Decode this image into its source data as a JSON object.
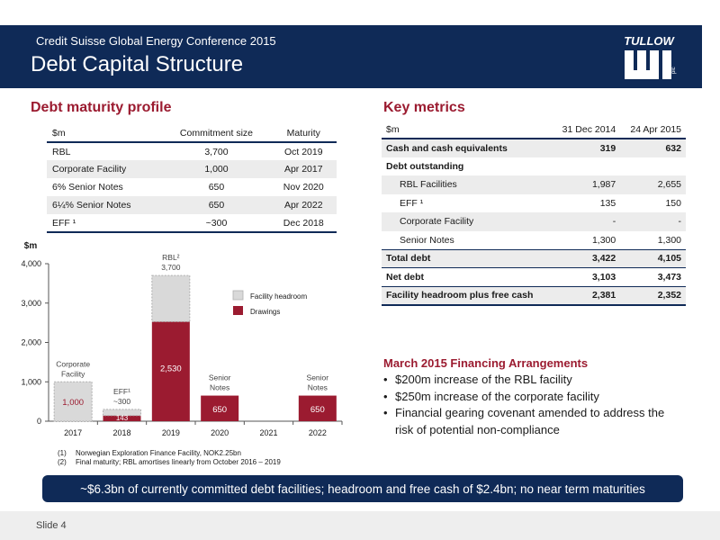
{
  "header": {
    "conference": "Credit Suisse Global Energy Conference 2015",
    "title": "Debt Capital Structure",
    "logo_text": "TULLOW",
    "logo_suffix": "plc"
  },
  "maturity": {
    "title": "Debt maturity profile",
    "columns": [
      "$m",
      "Commitment size",
      "Maturity"
    ],
    "rows": [
      {
        "name": "RBL",
        "size": "3,700",
        "maturity": "Oct 2019"
      },
      {
        "name": "Corporate Facility",
        "size": "1,000",
        "maturity": "Apr 2017"
      },
      {
        "name": "6% Senior Notes",
        "size": "650",
        "maturity": "Nov 2020"
      },
      {
        "name": "6¼% Senior Notes",
        "size": "650",
        "maturity": "Apr 2022"
      },
      {
        "name": "EFF ¹",
        "size": "~300",
        "maturity": "Dec 2018"
      }
    ]
  },
  "chart_data": {
    "type": "bar",
    "ylabel": "$m",
    "ylim": [
      0,
      4000
    ],
    "yticks": [
      "0",
      "1,000",
      "2,000",
      "3,000",
      "4,000"
    ],
    "categories": [
      "2017",
      "2018",
      "2019",
      "2020",
      "2021",
      "2022"
    ],
    "series": [
      {
        "name": "Drawings",
        "values": [
          0,
          143,
          2530,
          650,
          0,
          650
        ],
        "labels": [
          "",
          "143",
          "2,530",
          "650",
          "",
          "650"
        ]
      },
      {
        "name": "Facility headroom",
        "values": [
          1000,
          157,
          1170,
          0,
          0,
          0
        ],
        "labels": [
          "1,000",
          "",
          "",
          "",
          "",
          ""
        ]
      }
    ],
    "annotations": [
      {
        "category": "2017",
        "lines": [
          "Corporate",
          "Facility"
        ]
      },
      {
        "category": "2018",
        "lines": [
          "EFF¹",
          "~300"
        ]
      },
      {
        "category": "2019",
        "lines": [
          "RBL²",
          "3,700"
        ]
      },
      {
        "category": "2020",
        "lines": [
          "Senior",
          "Notes"
        ]
      },
      {
        "category": "2022",
        "lines": [
          "Senior",
          "Notes"
        ]
      }
    ],
    "legend_position": "top-right",
    "colors": {
      "drawings": "#9b1b30",
      "headroom": "#d9d9d9",
      "headroom_border": "#b0b0b0"
    }
  },
  "footnotes": [
    {
      "num": "(1)",
      "text": "Norwegian Exploration Finance Facility, NOK2.25bn"
    },
    {
      "num": "(2)",
      "text": "Final maturity; RBL amortises linearly from October 2016 – 2019"
    }
  ],
  "metrics": {
    "title": "Key metrics",
    "columns": [
      "$m",
      "31 Dec 2014",
      "24 Apr 2015"
    ],
    "rows": [
      {
        "label": "Cash and cash equivalents",
        "v1": "319",
        "v2": "632"
      },
      {
        "label": "Debt outstanding",
        "v1": "",
        "v2": ""
      },
      {
        "label": "RBL Facilities",
        "v1": "1,987",
        "v2": "2,655"
      },
      {
        "label": "EFF ¹",
        "v1": "135",
        "v2": "150"
      },
      {
        "label": "Corporate Facility",
        "v1": "-",
        "v2": "-"
      },
      {
        "label": "Senior Notes",
        "v1": "1,300",
        "v2": "1,300"
      },
      {
        "label": "Total debt",
        "v1": "3,422",
        "v2": "4,105"
      },
      {
        "label": "Net debt",
        "v1": "3,103",
        "v2": "3,473"
      },
      {
        "label": "Facility headroom plus free cash",
        "v1": "2,381",
        "v2": "2,352"
      }
    ]
  },
  "arrangements": {
    "title": "March 2015 Financing Arrangements",
    "bullet": "•",
    "items": [
      "$200m increase of the RBL facility",
      "$250m increase of the corporate facility",
      "Financial gearing covenant amended to address the risk of potential non-compliance"
    ]
  },
  "banner": "~$6.3bn of currently committed debt facilities; headroom  and free cash of $2.4bn; no near term maturities",
  "footer": {
    "slide": "Slide 4"
  },
  "colors": {
    "navy": "#0f2a57",
    "accent": "#9b1b30"
  }
}
